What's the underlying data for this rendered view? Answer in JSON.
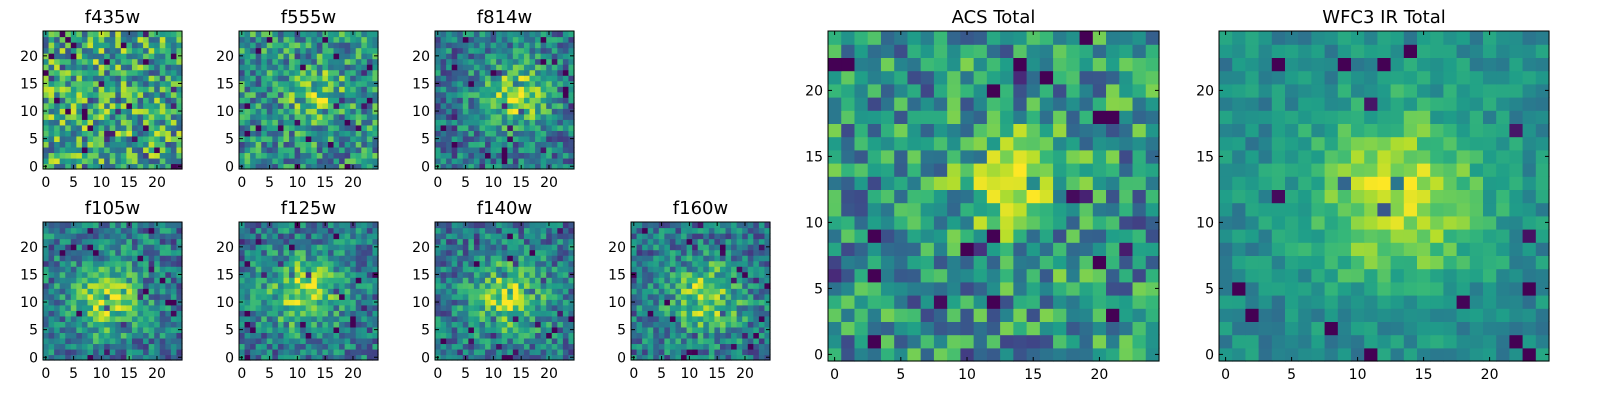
{
  "figure": {
    "panels": [
      {
        "title": "f435w"
      },
      {
        "title": "f555w"
      },
      {
        "title": "f814w"
      },
      {
        "title": "f105w"
      },
      {
        "title": "f125w"
      },
      {
        "title": "f140w"
      },
      {
        "title": "f160w"
      },
      {
        "title": "ACS Total"
      },
      {
        "title": "WFC3 IR Total"
      }
    ]
  },
  "chart_data": [
    {
      "type": "heatmap",
      "title": "f435w",
      "grid_size": 25,
      "colormap": "viridis",
      "xlim": [
        0,
        24
      ],
      "ylim": [
        0,
        24
      ],
      "xticks": [
        0,
        5,
        10,
        15,
        20
      ],
      "yticks": [
        0,
        5,
        10,
        15,
        20
      ],
      "pattern": "noise",
      "center": [
        12,
        12
      ]
    },
    {
      "type": "heatmap",
      "title": "f555w",
      "grid_size": 25,
      "colormap": "viridis",
      "xlim": [
        0,
        24
      ],
      "ylim": [
        0,
        24
      ],
      "xticks": [
        0,
        5,
        10,
        15,
        20
      ],
      "yticks": [
        0,
        5,
        10,
        15,
        20
      ],
      "pattern": "noise-faint-source",
      "center": [
        14,
        13
      ]
    },
    {
      "type": "heatmap",
      "title": "f814w",
      "grid_size": 25,
      "colormap": "viridis",
      "xlim": [
        0,
        24
      ],
      "ylim": [
        0,
        24
      ],
      "xticks": [
        0,
        5,
        10,
        15,
        20
      ],
      "yticks": [
        0,
        5,
        10,
        15,
        20
      ],
      "pattern": "source",
      "center": [
        14,
        13
      ]
    },
    {
      "type": "heatmap",
      "title": "f105w",
      "grid_size": 25,
      "colormap": "viridis",
      "xlim": [
        0,
        24
      ],
      "ylim": [
        0,
        24
      ],
      "xticks": [
        0,
        5,
        10,
        15,
        20
      ],
      "yticks": [
        0,
        5,
        10,
        15,
        20
      ],
      "pattern": "source",
      "center": [
        11,
        11
      ]
    },
    {
      "type": "heatmap",
      "title": "f125w",
      "grid_size": 25,
      "colormap": "viridis",
      "xlim": [
        0,
        24
      ],
      "ylim": [
        0,
        24
      ],
      "xticks": [
        0,
        5,
        10,
        15,
        20
      ],
      "yticks": [
        0,
        5,
        10,
        15,
        20
      ],
      "pattern": "source",
      "center": [
        11,
        12
      ]
    },
    {
      "type": "heatmap",
      "title": "f140w",
      "grid_size": 25,
      "colormap": "viridis",
      "xlim": [
        0,
        24
      ],
      "ylim": [
        0,
        24
      ],
      "xticks": [
        0,
        5,
        10,
        15,
        20
      ],
      "yticks": [
        0,
        5,
        10,
        15,
        20
      ],
      "pattern": "source",
      "center": [
        13,
        11
      ]
    },
    {
      "type": "heatmap",
      "title": "f160w",
      "grid_size": 25,
      "colormap": "viridis",
      "xlim": [
        0,
        24
      ],
      "ylim": [
        0,
        24
      ],
      "xticks": [
        0,
        5,
        10,
        15,
        20
      ],
      "yticks": [
        0,
        5,
        10,
        15,
        20
      ],
      "pattern": "source",
      "center": [
        13,
        11
      ]
    },
    {
      "type": "heatmap",
      "title": "ACS Total",
      "grid_size": 25,
      "colormap": "viridis",
      "xlim": [
        0,
        24
      ],
      "ylim": [
        0,
        24
      ],
      "xticks": [
        0,
        5,
        10,
        15,
        20
      ],
      "yticks": [
        0,
        5,
        10,
        15,
        20
      ],
      "pattern": "noise-faint-source",
      "center": [
        14,
        13
      ]
    },
    {
      "type": "heatmap",
      "title": "WFC3 IR Total",
      "grid_size": 25,
      "colormap": "viridis",
      "xlim": [
        0,
        24
      ],
      "ylim": [
        0,
        24
      ],
      "xticks": [
        0,
        5,
        10,
        15,
        20
      ],
      "yticks": [
        0,
        5,
        10,
        15,
        20
      ],
      "pattern": "smooth-source",
      "center": [
        13,
        12
      ]
    }
  ]
}
